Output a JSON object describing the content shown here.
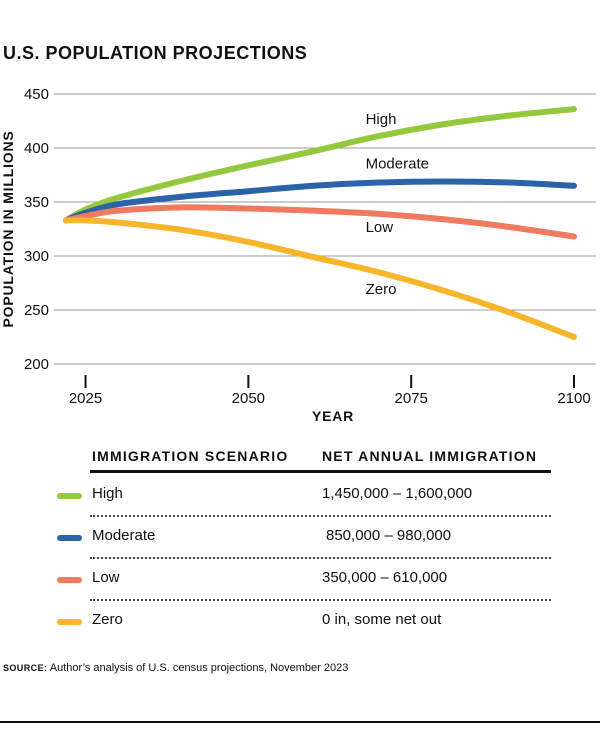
{
  "title": "U.S. POPULATION PROJECTIONS",
  "chart_data": {
    "type": "line",
    "title": "U.S. POPULATION PROJECTIONS",
    "xlabel": "YEAR",
    "ylabel": "POPULATION IN MILLIONS",
    "xlim": [
      2022,
      2100
    ],
    "ylim": [
      200,
      450
    ],
    "xticks": [
      2025,
      2050,
      2075,
      2100
    ],
    "yticks": [
      200,
      250,
      300,
      350,
      400,
      450
    ],
    "grid": true,
    "series": [
      {
        "name": "High",
        "color": "#94c83d",
        "x": [
          2022,
          2025,
          2030,
          2040,
          2050,
          2060,
          2070,
          2080,
          2090,
          2100
        ],
        "values": [
          333,
          343,
          354,
          370,
          384,
          397,
          411,
          422,
          430,
          436
        ]
      },
      {
        "name": "Moderate",
        "color": "#2b62a8",
        "x": [
          2022,
          2025,
          2030,
          2040,
          2050,
          2060,
          2070,
          2080,
          2090,
          2100
        ],
        "values": [
          333,
          340,
          348,
          355,
          360,
          365,
          368,
          369,
          368,
          365
        ]
      },
      {
        "name": "Low",
        "color": "#ee7b60",
        "x": [
          2022,
          2025,
          2030,
          2040,
          2050,
          2060,
          2070,
          2080,
          2090,
          2100
        ],
        "values": [
          333,
          337,
          342,
          345,
          344,
          342,
          339,
          334,
          327,
          318
        ]
      },
      {
        "name": "Zero",
        "color": "#f7b52c",
        "x": [
          2022,
          2025,
          2030,
          2040,
          2050,
          2060,
          2070,
          2080,
          2090,
          2100
        ],
        "values": [
          333,
          333,
          331,
          324,
          313,
          299,
          285,
          268,
          248,
          225
        ]
      }
    ],
    "annotations": [
      {
        "text": "High",
        "x": 2068,
        "y": 422
      },
      {
        "text": "Moderate",
        "x": 2068,
        "y": 381
      },
      {
        "text": "Low",
        "x": 2068,
        "y": 322
      },
      {
        "text": "Zero",
        "x": 2068,
        "y": 265
      }
    ]
  },
  "legend_table": {
    "header_scenario": "IMMIGRATION SCENARIO",
    "header_immigration": "NET ANNUAL IMMIGRATION",
    "rows": [
      {
        "name": "High",
        "value": "1,450,000 – 1,600,000",
        "color": "#94c83d"
      },
      {
        "name": "Moderate",
        "value": "850,000 – 980,000",
        "color": "#2b62a8"
      },
      {
        "name": "Low",
        "value": "350,000 – 610,000",
        "color": "#ee7b60"
      },
      {
        "name": "Zero",
        "value": "0 in, some net out",
        "color": "#f7b52c"
      }
    ]
  },
  "source": {
    "label": "SOURCE:",
    "text": "Author’s analysis of U.S. census projections, November 2023"
  }
}
